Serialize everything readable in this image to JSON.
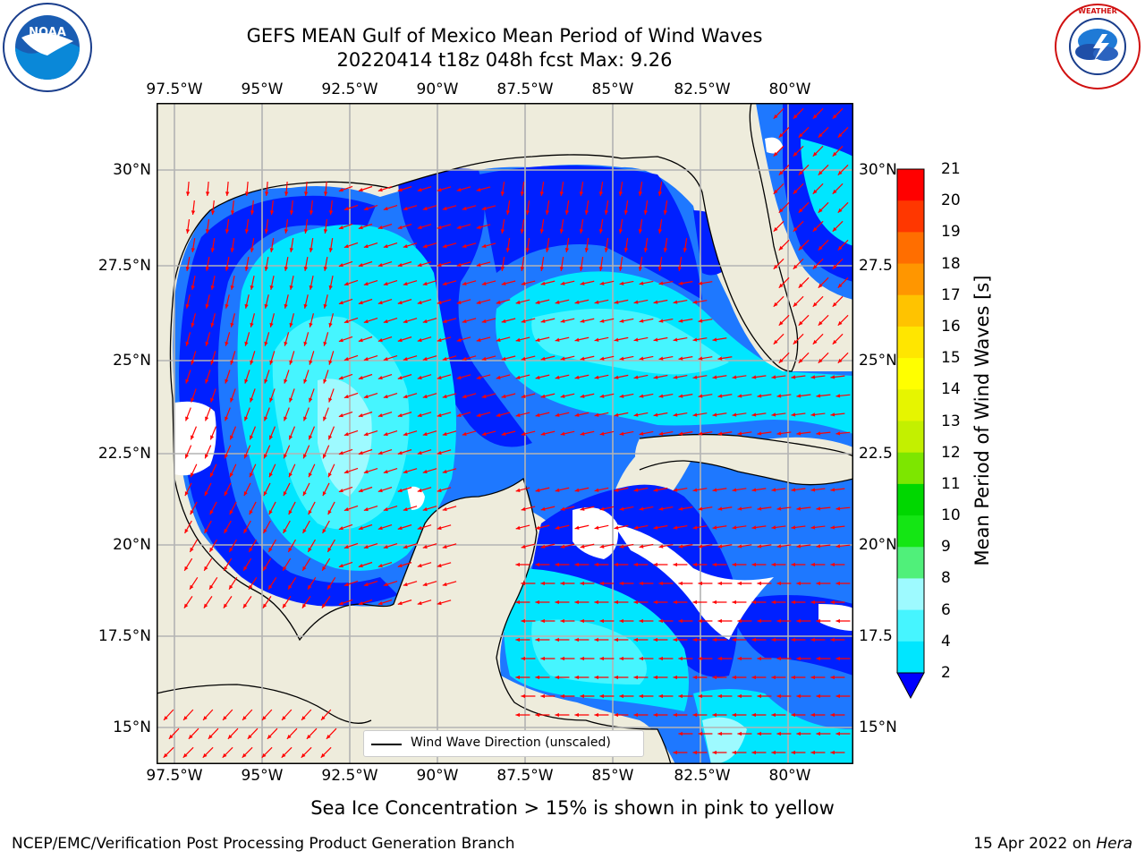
{
  "title": {
    "line1": "GEFS MEAN Gulf of Mexico Mean Period of Wind Waves",
    "line2": "20220414 t18z 048h fcst   Max: 9.26"
  },
  "logos": {
    "left": {
      "name": "noaa-logo",
      "text": "NOAA",
      "ring_text": "NATIONAL OCEANIC AND ATMOSPHERIC ADMINISTRATION · U.S. DEPARTMENT OF COMMERCE"
    },
    "right": {
      "name": "nws-logo",
      "ring_text": "NATIONAL WEATHER SERVICE"
    }
  },
  "map": {
    "lon_ticks": [
      "97.5°W",
      "95°W",
      "92.5°W",
      "90°W",
      "87.5°W",
      "85°W",
      "82.5°W",
      "80°W"
    ],
    "lat_ticks_left": [
      "30°N",
      "27.5°N",
      "25°N",
      "22.5°N",
      "20°N",
      "17.5°N",
      "15°N"
    ],
    "lat_ticks_right": [
      "30°N",
      "27.5",
      "25°N",
      "22.5",
      "20°N",
      "17.5",
      "15°N"
    ],
    "colors": {
      "land": "#eeecdc",
      "water_blank": "#ffffff",
      "arrow": "#ff0000",
      "grid": "#b3b3b3"
    }
  },
  "legend": {
    "label": "Wind Wave Direction (unscaled)"
  },
  "colorbar": {
    "label": "Mean Period of Wind Waves [s]",
    "ticks": [
      "2",
      "4",
      "6",
      "8",
      "9",
      "10",
      "11",
      "12",
      "13",
      "14",
      "15",
      "16",
      "17",
      "18",
      "19",
      "20",
      "21"
    ],
    "colors": [
      "#0020ff",
      "#1e78ff",
      "#00e6ff",
      "#46f5ff",
      "#9efaff",
      "#50f07a",
      "#14e614",
      "#00d700",
      "#7de600",
      "#c3f000",
      "#e6f500",
      "#ffff00",
      "#ffe600",
      "#ffc300",
      "#ff9600",
      "#ff6e00",
      "#ff3700",
      "#ff0000"
    ],
    "extend_color": "#0000ff"
  },
  "subtitle": "Sea Ice Concentration > 15% is shown in pink to yellow",
  "footer": {
    "left": "NCEP/EMC/Verification Post Processing Product Generation Branch",
    "right_prefix": "15 Apr 2022 on ",
    "right_host": "Hera"
  }
}
